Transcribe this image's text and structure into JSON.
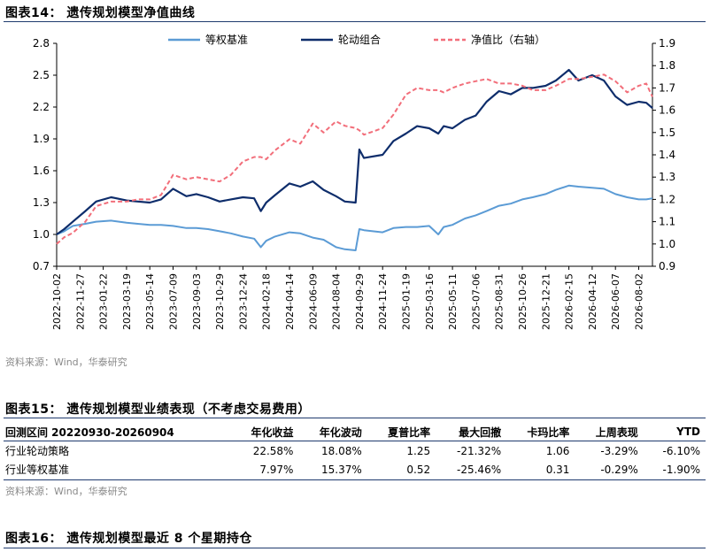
{
  "fig14": {
    "title": "图表14：  遗传规划模型净值曲线",
    "source": "资料来源：Wind，华泰研究"
  },
  "chart_data": {
    "type": "line",
    "legend_position": "top",
    "y_left": {
      "min": 0.7,
      "max": 2.8,
      "ticks": [
        "2.8",
        "2.5",
        "2.2",
        "1.9",
        "1.6",
        "1.3",
        "1.0",
        "0.7"
      ]
    },
    "y_right": {
      "min": 0.9,
      "max": 1.9,
      "ticks": [
        "1.9",
        "1.8",
        "1.7",
        "1.6",
        "1.5",
        "1.4",
        "1.3",
        "1.2",
        "1.1",
        "1.0",
        "0.9"
      ]
    },
    "x_labels": [
      "2022-10-02",
      "2022-11-27",
      "2023-01-22",
      "2023-03-19",
      "2023-05-14",
      "2023-07-09",
      "2023-09-03",
      "2023-10-29",
      "2023-12-24",
      "2024-02-18",
      "2024-04-14",
      "2024-06-09",
      "2024-08-04",
      "2024-09-29",
      "2024-11-24",
      "2025-01-19",
      "2025-03-16",
      "2025-05-11",
      "2025-07-06",
      "2025-08-31",
      "2025-10-26",
      "2025-12-21",
      "2026-02-15",
      "2026-04-12",
      "2026-06-07",
      "2026-08-02"
    ],
    "x_range": [
      "2022-10-02",
      "2026-09-04"
    ],
    "series": [
      {
        "name": "等权基准",
        "axis": "left",
        "color": "#5b9bd5",
        "style": "solid",
        "x": [
          "2022-10-02",
          "2022-10-20",
          "2022-11-10",
          "2022-12-10",
          "2023-01-05",
          "2023-02-10",
          "2023-03-19",
          "2023-04-15",
          "2023-05-14",
          "2023-06-10",
          "2023-07-09",
          "2023-08-10",
          "2023-09-03",
          "2023-10-01",
          "2023-10-29",
          "2023-11-25",
          "2023-12-24",
          "2024-01-20",
          "2024-02-05",
          "2024-02-18",
          "2024-03-10",
          "2024-04-14",
          "2024-05-10",
          "2024-06-09",
          "2024-07-05",
          "2024-08-04",
          "2024-08-25",
          "2024-09-20",
          "2024-09-29",
          "2024-10-10",
          "2024-11-24",
          "2024-12-20",
          "2025-01-19",
          "2025-02-15",
          "2025-03-16",
          "2025-04-07",
          "2025-04-20",
          "2025-05-11",
          "2025-06-10",
          "2025-07-06",
          "2025-08-01",
          "2025-08-31",
          "2025-09-28",
          "2025-10-26",
          "2025-11-20",
          "2025-12-21",
          "2026-01-15",
          "2026-02-15",
          "2026-03-10",
          "2026-04-12",
          "2026-05-10",
          "2026-06-07",
          "2026-07-05",
          "2026-08-02",
          "2026-08-20",
          "2026-09-04"
        ],
        "y": [
          1.0,
          1.03,
          1.08,
          1.1,
          1.12,
          1.13,
          1.11,
          1.1,
          1.09,
          1.09,
          1.08,
          1.06,
          1.06,
          1.05,
          1.03,
          1.01,
          0.98,
          0.96,
          0.88,
          0.94,
          0.98,
          1.02,
          1.01,
          0.97,
          0.95,
          0.88,
          0.86,
          0.85,
          1.05,
          1.04,
          1.02,
          1.06,
          1.07,
          1.07,
          1.08,
          1.0,
          1.07,
          1.09,
          1.15,
          1.18,
          1.22,
          1.27,
          1.29,
          1.33,
          1.35,
          1.38,
          1.42,
          1.46,
          1.45,
          1.44,
          1.43,
          1.38,
          1.35,
          1.33,
          1.33,
          1.34
        ]
      },
      {
        "name": "轮动组合",
        "axis": "left",
        "color": "#0e2d6b",
        "style": "solid",
        "x": [
          "2022-10-02",
          "2022-10-20",
          "2022-11-10",
          "2022-12-10",
          "2023-01-05",
          "2023-02-10",
          "2023-03-19",
          "2023-04-15",
          "2023-05-14",
          "2023-06-10",
          "2023-07-09",
          "2023-08-10",
          "2023-09-03",
          "2023-10-01",
          "2023-10-29",
          "2023-11-25",
          "2023-12-24",
          "2024-01-20",
          "2024-02-05",
          "2024-02-18",
          "2024-03-10",
          "2024-04-14",
          "2024-05-10",
          "2024-06-09",
          "2024-07-05",
          "2024-08-04",
          "2024-08-25",
          "2024-09-20",
          "2024-09-29",
          "2024-10-10",
          "2024-11-24",
          "2024-12-20",
          "2025-01-19",
          "2025-02-15",
          "2025-03-16",
          "2025-04-07",
          "2025-04-20",
          "2025-05-11",
          "2025-06-10",
          "2025-07-06",
          "2025-08-01",
          "2025-08-31",
          "2025-09-28",
          "2025-10-26",
          "2025-11-20",
          "2025-12-21",
          "2026-01-15",
          "2026-02-15",
          "2026-03-10",
          "2026-04-12",
          "2026-05-10",
          "2026-06-07",
          "2026-07-05",
          "2026-08-02",
          "2026-08-20",
          "2026-09-04"
        ],
        "y": [
          1.0,
          1.05,
          1.12,
          1.22,
          1.31,
          1.35,
          1.32,
          1.31,
          1.3,
          1.33,
          1.43,
          1.36,
          1.38,
          1.35,
          1.31,
          1.33,
          1.35,
          1.34,
          1.22,
          1.3,
          1.37,
          1.48,
          1.45,
          1.5,
          1.42,
          1.36,
          1.31,
          1.3,
          1.8,
          1.72,
          1.75,
          1.88,
          1.95,
          2.02,
          2.0,
          1.95,
          2.02,
          2.0,
          2.08,
          2.12,
          2.25,
          2.35,
          2.32,
          2.38,
          2.38,
          2.4,
          2.45,
          2.55,
          2.45,
          2.5,
          2.45,
          2.3,
          2.22,
          2.25,
          2.24,
          2.19
        ]
      },
      {
        "name": "净值比（右轴）",
        "axis": "right",
        "color": "#f26e7a",
        "style": "dashed",
        "x": [
          "2022-10-02",
          "2022-10-20",
          "2022-11-10",
          "2022-12-10",
          "2023-01-05",
          "2023-02-10",
          "2023-03-19",
          "2023-04-15",
          "2023-05-14",
          "2023-06-10",
          "2023-07-09",
          "2023-08-10",
          "2023-09-03",
          "2023-10-01",
          "2023-10-29",
          "2023-11-25",
          "2023-12-24",
          "2024-01-20",
          "2024-02-05",
          "2024-02-18",
          "2024-03-10",
          "2024-04-14",
          "2024-05-10",
          "2024-06-09",
          "2024-07-05",
          "2024-08-04",
          "2024-08-25",
          "2024-09-20",
          "2024-09-29",
          "2024-10-10",
          "2024-11-24",
          "2024-12-20",
          "2025-01-19",
          "2025-02-15",
          "2025-03-16",
          "2025-04-07",
          "2025-04-20",
          "2025-05-11",
          "2025-06-10",
          "2025-07-06",
          "2025-08-01",
          "2025-08-31",
          "2025-09-28",
          "2025-10-26",
          "2025-11-20",
          "2025-12-21",
          "2026-01-15",
          "2026-02-15",
          "2026-03-10",
          "2026-04-12",
          "2026-05-10",
          "2026-06-07",
          "2026-07-05",
          "2026-08-02",
          "2026-08-20",
          "2026-09-04"
        ],
        "y": [
          1.0,
          1.03,
          1.05,
          1.1,
          1.17,
          1.19,
          1.19,
          1.2,
          1.2,
          1.22,
          1.31,
          1.29,
          1.3,
          1.29,
          1.28,
          1.31,
          1.37,
          1.39,
          1.39,
          1.38,
          1.42,
          1.47,
          1.45,
          1.54,
          1.5,
          1.55,
          1.53,
          1.52,
          1.51,
          1.49,
          1.52,
          1.58,
          1.67,
          1.7,
          1.69,
          1.69,
          1.68,
          1.7,
          1.72,
          1.73,
          1.74,
          1.72,
          1.72,
          1.71,
          1.69,
          1.69,
          1.71,
          1.74,
          1.74,
          1.75,
          1.76,
          1.73,
          1.68,
          1.71,
          1.72,
          1.66
        ]
      }
    ]
  },
  "fig15": {
    "title": "图表15：  遗传规划模型业绩表现（不考虑交易费用）",
    "source": "资料来源：Wind，华泰研究",
    "headers": [
      "回测区间 20220930-20260904",
      "年化收益",
      "年化波动",
      "夏普比率",
      "最大回撤",
      "卡玛比率",
      "上周表现",
      "YTD"
    ],
    "rows": [
      [
        "行业轮动策略",
        "22.58%",
        "18.08%",
        "1.25",
        "-21.32%",
        "1.06",
        "-3.29%",
        "-6.10%"
      ],
      [
        "行业等权基准",
        "7.97%",
        "15.37%",
        "0.52",
        "-25.46%",
        "0.31",
        "-0.29%",
        "-1.90%"
      ]
    ]
  },
  "fig16": {
    "title": "图表16：  遗传规划模型最近 8 个星期持仓"
  }
}
